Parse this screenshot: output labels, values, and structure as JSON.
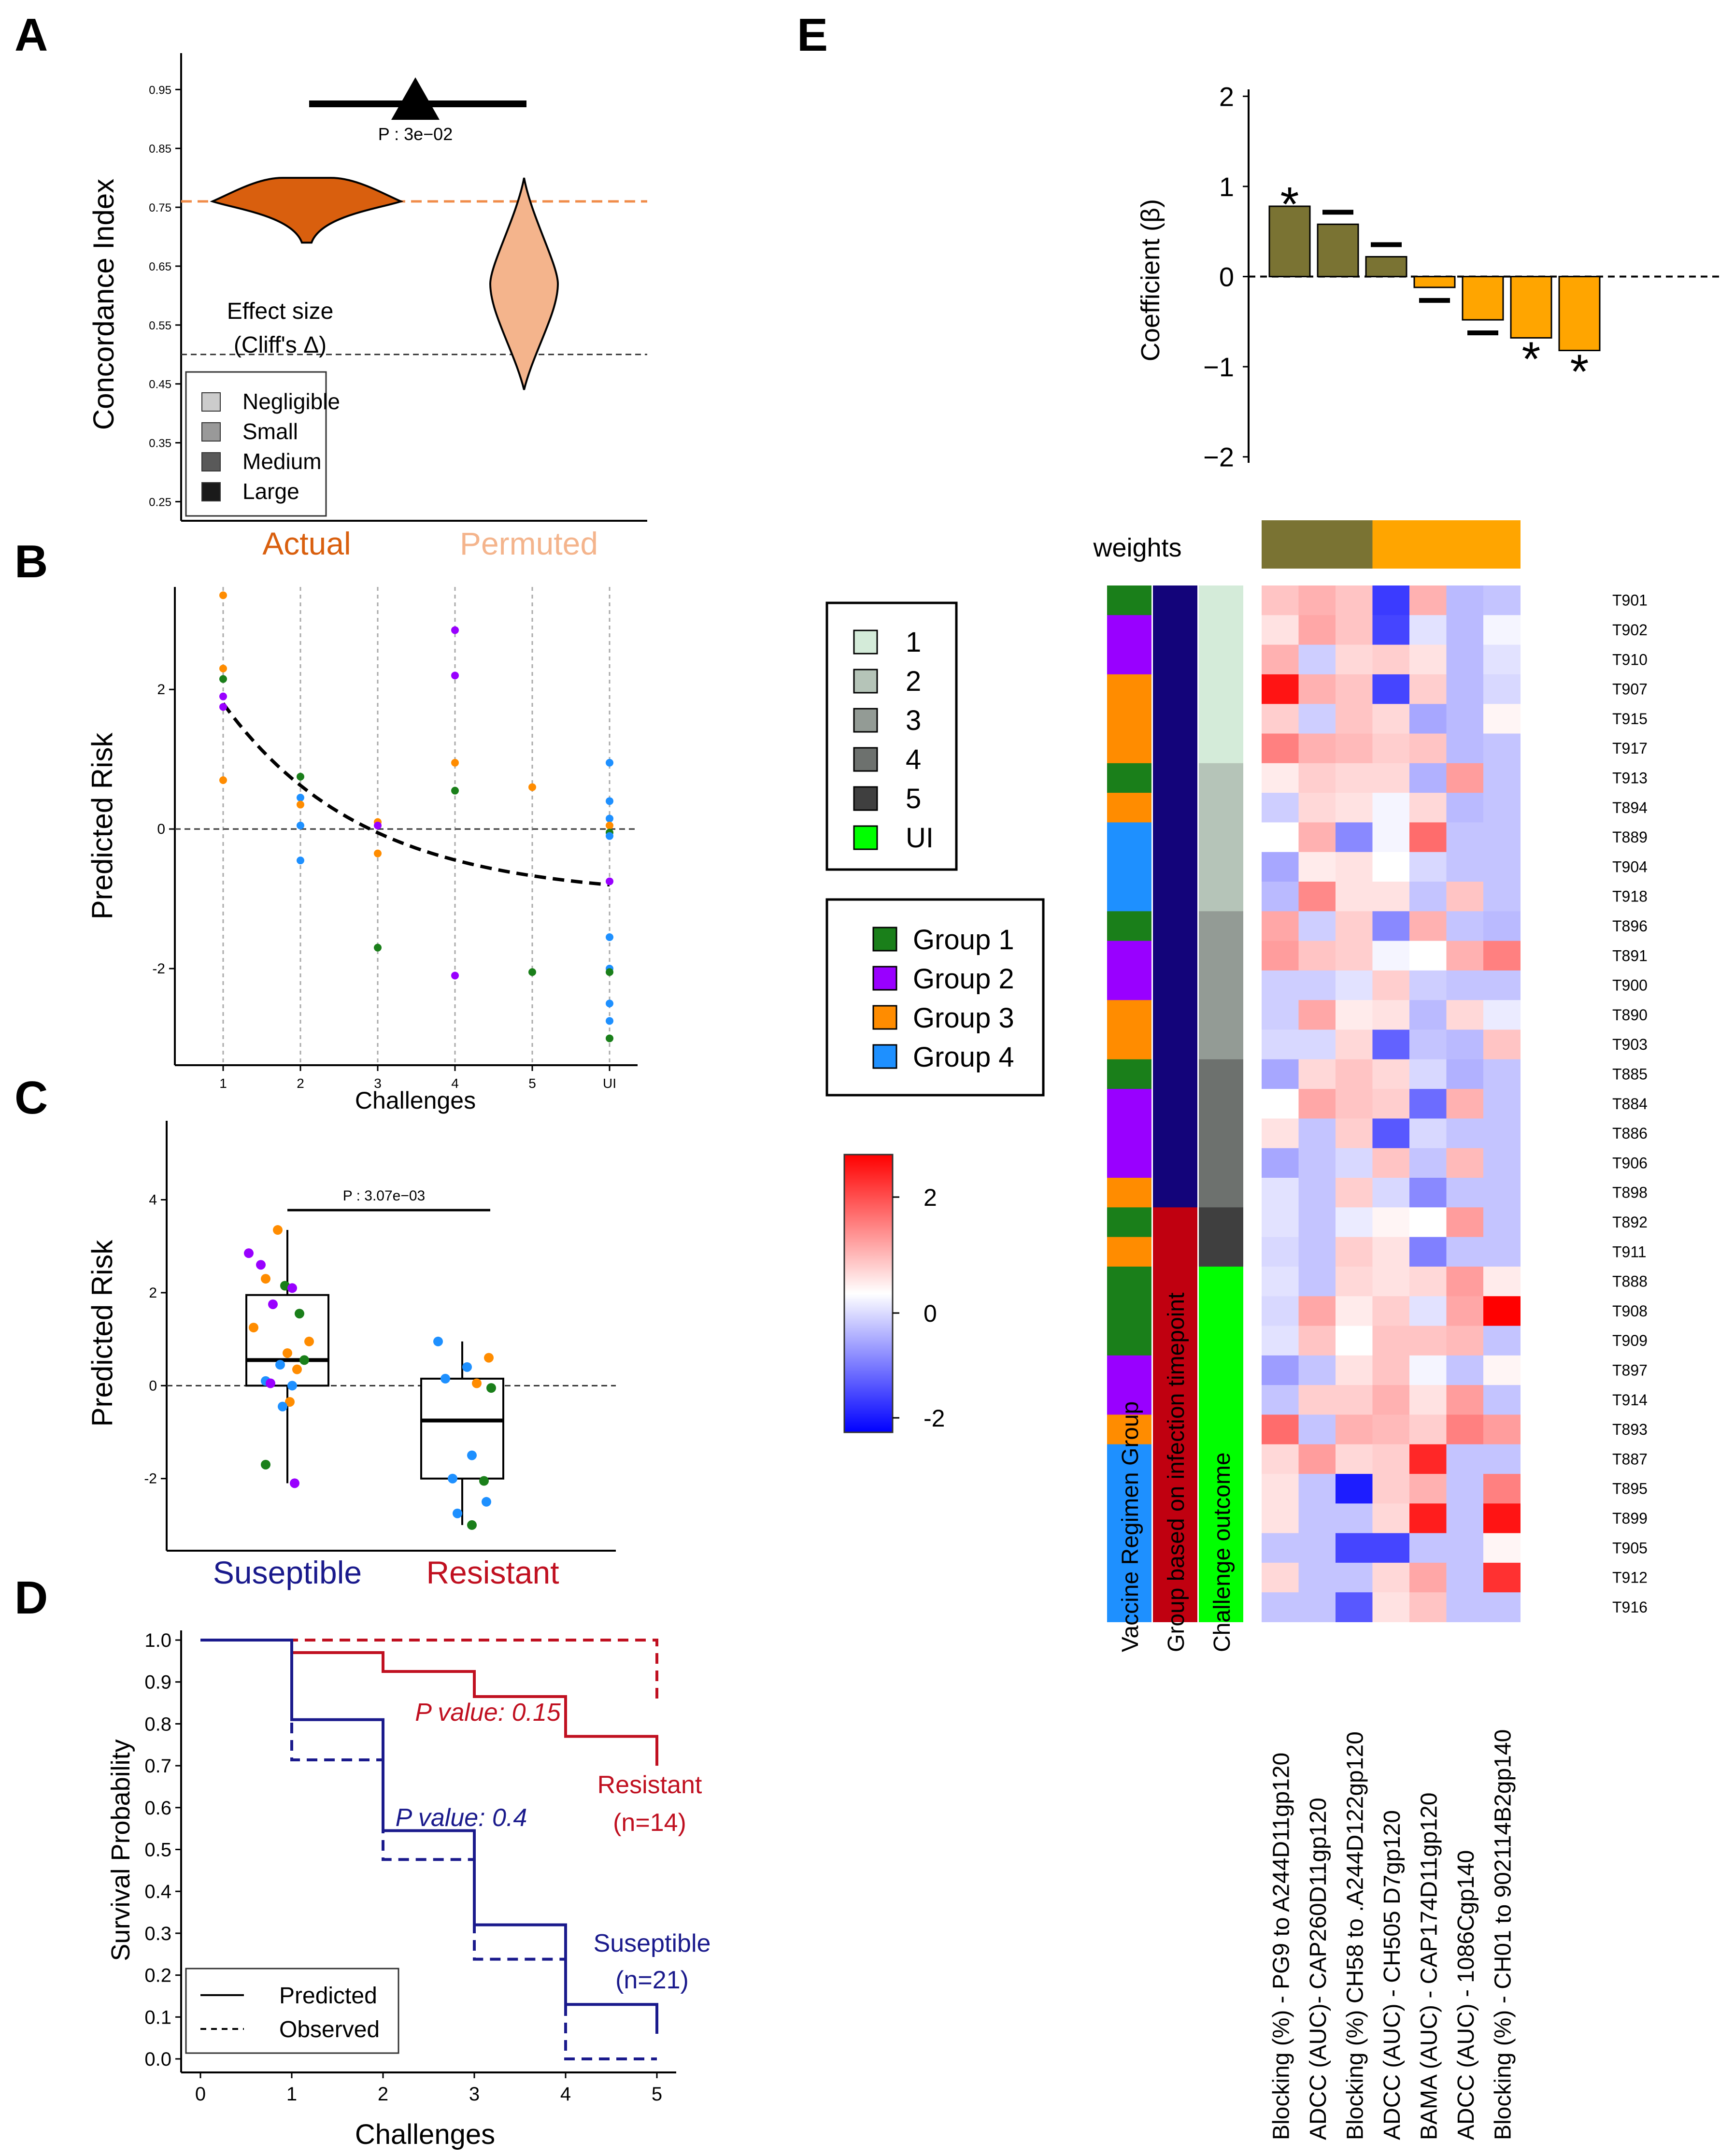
{
  "panel_letters": {
    "A": "A",
    "B": "B",
    "C": "C",
    "D": "D",
    "E": "E"
  },
  "colors": {
    "actual": "#d95f0e",
    "permuted": "#f4b48c",
    "ref_line": "#f08c4a",
    "susceptible": "#1a1a8c",
    "resistant": "#c01020",
    "group1": "#1a7f1a",
    "group2": "#9900ff",
    "group3": "#ff8c00",
    "group4": "#1e90ff",
    "olive": "#7a7333",
    "orange_bar": "#ffa500",
    "uninfected": "#00ff00",
    "navy": "#13047a",
    "crimson": "#c00010"
  },
  "chart_data": [
    {
      "panel": "A",
      "type": "violin",
      "ylabel": "Concordance Index",
      "yticks": [
        0.25,
        0.35,
        0.45,
        0.55,
        0.65,
        0.75,
        0.85,
        0.95
      ],
      "ylim": [
        0.22,
        1.02
      ],
      "categories": [
        "Actual",
        "Permuted"
      ],
      "actual": {
        "median": 0.76,
        "min": 0.69,
        "max": 0.8
      },
      "permuted": {
        "median": 0.62,
        "min": 0.44,
        "max": 0.8
      },
      "reference_line": 0.5,
      "p_label": "P :  3e−02",
      "effect_size_title": [
        "Effect size",
        "(Cliff's Δ)"
      ],
      "legend": [
        "Negligible",
        "Small",
        "Medium",
        "Large"
      ],
      "legend_colors": [
        "#cccccc",
        "#999999",
        "#595959",
        "#1a1a1a"
      ]
    },
    {
      "panel": "B",
      "type": "scatter",
      "xlabel": "Challenges",
      "ylabel": "Predicted Risk",
      "xticks": [
        "1",
        "2",
        "3",
        "4",
        "5",
        "UI"
      ],
      "yticks": [
        -2,
        0,
        2
      ],
      "ylim": [
        -3.35,
        3.4
      ],
      "fit": {
        "from": 1,
        "to": 6,
        "y_at_from": 1.8,
        "y_at_to": -0.8
      },
      "points": [
        {
          "x": 1,
          "y": 3.35,
          "g": 3
        },
        {
          "x": 1,
          "y": 2.3,
          "g": 3
        },
        {
          "x": 1,
          "y": 2.15,
          "g": 1
        },
        {
          "x": 1,
          "y": 1.9,
          "g": 2
        },
        {
          "x": 1,
          "y": 1.75,
          "g": 2
        },
        {
          "x": 1,
          "y": 0.7,
          "g": 3
        },
        {
          "x": 2,
          "y": 0.75,
          "g": 1
        },
        {
          "x": 2,
          "y": 0.45,
          "g": 4
        },
        {
          "x": 2,
          "y": 0.35,
          "g": 3
        },
        {
          "x": 2,
          "y": 0.05,
          "g": 4
        },
        {
          "x": 2,
          "y": -0.45,
          "g": 4
        },
        {
          "x": 3,
          "y": 0.1,
          "g": 3
        },
        {
          "x": 3,
          "y": 0.05,
          "g": 2
        },
        {
          "x": 3,
          "y": -0.35,
          "g": 3
        },
        {
          "x": 3,
          "y": -1.7,
          "g": 1
        },
        {
          "x": 4,
          "y": 2.85,
          "g": 2
        },
        {
          "x": 4,
          "y": 2.2,
          "g": 2
        },
        {
          "x": 4,
          "y": 0.95,
          "g": 3
        },
        {
          "x": 4,
          "y": 0.55,
          "g": 1
        },
        {
          "x": 4,
          "y": -2.1,
          "g": 2
        },
        {
          "x": 5,
          "y": 0.6,
          "g": 3
        },
        {
          "x": 5,
          "y": -2.05,
          "g": 1
        },
        {
          "x": 6,
          "y": 0.95,
          "g": 4
        },
        {
          "x": 6,
          "y": 0.4,
          "g": 4
        },
        {
          "x": 6,
          "y": 0.15,
          "g": 4
        },
        {
          "x": 6,
          "y": 0.05,
          "g": 3
        },
        {
          "x": 6,
          "y": -0.05,
          "g": 1
        },
        {
          "x": 6,
          "y": -0.1,
          "g": 4
        },
        {
          "x": 6,
          "y": -0.75,
          "g": 2
        },
        {
          "x": 6,
          "y": -1.55,
          "g": 4
        },
        {
          "x": 6,
          "y": -2.0,
          "g": 4
        },
        {
          "x": 6,
          "y": -2.05,
          "g": 1
        },
        {
          "x": 6,
          "y": -2.5,
          "g": 4
        },
        {
          "x": 6,
          "y": -2.75,
          "g": 4
        },
        {
          "x": 6,
          "y": -3.0,
          "g": 1
        }
      ]
    },
    {
      "panel": "C",
      "type": "box",
      "ylabel": "Predicted Risk",
      "categories": [
        "Suseptible",
        "Resistant"
      ],
      "yticks": [
        -2,
        0,
        2,
        4
      ],
      "ylim": [
        -3.5,
        5.7
      ],
      "p_label": "P :  3.07e−03",
      "boxes": [
        {
          "name": "Suseptible",
          "q1": 0.0,
          "median": 0.55,
          "q3": 1.95,
          "low": -2.1,
          "high": 3.35
        },
        {
          "name": "Resistant",
          "q1": -2.0,
          "median": -0.75,
          "q3": 0.15,
          "low": -3.0,
          "high": 0.95
        }
      ],
      "points": [
        {
          "b": 0,
          "y": 3.35,
          "g": 3,
          "j": -0.2
        },
        {
          "b": 0,
          "y": 2.85,
          "g": 2,
          "j": -0.8
        },
        {
          "b": 0,
          "y": 2.6,
          "g": 2,
          "j": -0.55
        },
        {
          "b": 0,
          "y": 2.3,
          "g": 3,
          "j": -0.45
        },
        {
          "b": 0,
          "y": 2.15,
          "g": 1,
          "j": -0.05
        },
        {
          "b": 0,
          "y": 2.1,
          "g": 2,
          "j": 0.1
        },
        {
          "b": 0,
          "y": 1.75,
          "g": 2,
          "j": -0.3
        },
        {
          "b": 0,
          "y": 1.55,
          "g": 1,
          "j": 0.25
        },
        {
          "b": 0,
          "y": 1.25,
          "g": 3,
          "j": -0.7
        },
        {
          "b": 0,
          "y": 0.95,
          "g": 3,
          "j": 0.45
        },
        {
          "b": 0,
          "y": 0.7,
          "g": 3,
          "j": 0.0
        },
        {
          "b": 0,
          "y": 0.55,
          "g": 1,
          "j": 0.35
        },
        {
          "b": 0,
          "y": 0.45,
          "g": 4,
          "j": -0.15
        },
        {
          "b": 0,
          "y": 0.35,
          "g": 3,
          "j": 0.2
        },
        {
          "b": 0,
          "y": 0.1,
          "g": 4,
          "j": -0.45
        },
        {
          "b": 0,
          "y": 0.05,
          "g": 2,
          "j": -0.35
        },
        {
          "b": 0,
          "y": 0.0,
          "g": 4,
          "j": 0.1
        },
        {
          "b": 0,
          "y": -0.35,
          "g": 3,
          "j": 0.05
        },
        {
          "b": 0,
          "y": -0.45,
          "g": 4,
          "j": -0.1
        },
        {
          "b": 0,
          "y": -1.7,
          "g": 1,
          "j": -0.45
        },
        {
          "b": 0,
          "y": -2.1,
          "g": 2,
          "j": 0.15
        },
        {
          "b": 1,
          "y": 0.95,
          "g": 4,
          "j": -0.5
        },
        {
          "b": 1,
          "y": 0.6,
          "g": 3,
          "j": 0.55
        },
        {
          "b": 1,
          "y": 0.4,
          "g": 4,
          "j": 0.1
        },
        {
          "b": 1,
          "y": 0.15,
          "g": 4,
          "j": -0.35
        },
        {
          "b": 1,
          "y": 0.05,
          "g": 3,
          "j": 0.3
        },
        {
          "b": 1,
          "y": -0.05,
          "g": 1,
          "j": 0.6
        },
        {
          "b": 1,
          "y": -1.5,
          "g": 4,
          "j": 0.2
        },
        {
          "b": 1,
          "y": -2.0,
          "g": 4,
          "j": -0.2
        },
        {
          "b": 1,
          "y": -2.05,
          "g": 1,
          "j": 0.45
        },
        {
          "b": 1,
          "y": -2.5,
          "g": 4,
          "j": 0.5
        },
        {
          "b": 1,
          "y": -2.75,
          "g": 4,
          "j": -0.1
        },
        {
          "b": 1,
          "y": -3.0,
          "g": 1,
          "j": 0.2
        }
      ]
    },
    {
      "panel": "D",
      "type": "line",
      "xlabel": "Challenges",
      "ylabel": "Survival Probability",
      "xticks": [
        0,
        1,
        2,
        3,
        4,
        5
      ],
      "yticks": [
        0.0,
        0.1,
        0.2,
        0.3,
        0.4,
        0.5,
        0.6,
        0.7,
        0.8,
        0.9,
        1.0
      ],
      "series": [
        {
          "name": "Resistant",
          "kind": "Predicted",
          "x": [
            0,
            1,
            2,
            3,
            4,
            5
          ],
          "y": [
            1.0,
            0.97,
            0.925,
            0.865,
            0.77,
            0.7
          ]
        },
        {
          "name": "Resistant",
          "kind": "Observed",
          "x": [
            0,
            1,
            2,
            3,
            4,
            5
          ],
          "y": [
            1.0,
            1.0,
            1.0,
            1.0,
            1.0,
            0.857
          ]
        },
        {
          "name": "Suseptible",
          "kind": "Predicted",
          "x": [
            0,
            1,
            2,
            3,
            4,
            5
          ],
          "y": [
            1.0,
            0.81,
            0.545,
            0.32,
            0.13,
            0.06
          ]
        },
        {
          "name": "Suseptible",
          "kind": "Observed",
          "x": [
            0,
            1,
            2,
            3,
            4,
            5
          ],
          "y": [
            1.0,
            0.714,
            0.476,
            0.238,
            0.0,
            0.0
          ]
        }
      ],
      "annotations": {
        "p_resistant": "P value: 0.15",
        "p_susceptible": "P value: 0.4",
        "resistant": "Resistant",
        "resistant_n": "(n=14)",
        "susceptible": "Suseptible",
        "susceptible_n": "(n=21)"
      },
      "legend": [
        "Predicted",
        "Observed"
      ]
    },
    {
      "panel": "E",
      "type": "bar",
      "ylabel": "Coefficient (β)",
      "yticks": [
        -2,
        -1,
        0,
        1,
        2
      ],
      "ylim": [
        -2.05,
        2.05
      ],
      "values": [
        0.78,
        0.58,
        0.22,
        -0.12,
        -0.48,
        -0.68,
        -0.82
      ],
      "marks": [
        "*",
        "—",
        "—",
        "—",
        "—",
        "*",
        "*"
      ]
    },
    {
      "panel": "E",
      "type": "heatmap",
      "weights_label": "weights",
      "weights": [
        1,
        1,
        1,
        -1,
        -1,
        -1,
        -1
      ],
      "columns": [
        "Blocking (%) -  PG9 to A244D11gp120",
        "ADCC (AUC)- CAP260D11gp120",
        "Blocking (%) CH58 to .A244D122gp120",
        "ADCC (AUC) - CH505 D7gp120",
        "BAMA (AUC) - CAP174D11gp120",
        "ADCC (AUC) - 1086Cgp140",
        "Blocking (%) - CH01 to  902114B2gp140"
      ],
      "annotation_columns": [
        "Vaccine Regimen Group",
        "Group based on infection timepoint",
        "Challenge outcome"
      ],
      "rows": [
        "T901",
        "T902",
        "T910",
        "T907",
        "T915",
        "T917",
        "T913",
        "T894",
        "T889",
        "T904",
        "T918",
        "T896",
        "T891",
        "T900",
        "T890",
        "T903",
        "T885",
        "T884",
        "T886",
        "T906",
        "T898",
        "T892",
        "T911",
        "T888",
        "T908",
        "T909",
        "T897",
        "T914",
        "T893",
        "T887",
        "T895",
        "T899",
        "T905",
        "T912",
        "T916"
      ],
      "vaccine_group": [
        1,
        2,
        2,
        3,
        3,
        3,
        1,
        3,
        4,
        4,
        4,
        1,
        2,
        2,
        3,
        3,
        1,
        2,
        2,
        2,
        3,
        1,
        3,
        1,
        1,
        1,
        2,
        2,
        3,
        4,
        4,
        4,
        4,
        4,
        4
      ],
      "infection_group": [
        "S",
        "S",
        "S",
        "S",
        "S",
        "S",
        "S",
        "S",
        "S",
        "S",
        "S",
        "S",
        "S",
        "S",
        "S",
        "S",
        "S",
        "S",
        "S",
        "S",
        "S",
        "R",
        "R",
        "R",
        "R",
        "R",
        "R",
        "R",
        "R",
        "R",
        "R",
        "R",
        "R",
        "R",
        "R"
      ],
      "challenge_outcome": [
        "1",
        "1",
        "1",
        "1",
        "1",
        "1",
        "2",
        "2",
        "2",
        "2",
        "2",
        "3",
        "3",
        "3",
        "3",
        "3",
        "4",
        "4",
        "4",
        "4",
        "4",
        "5",
        "5",
        "UI",
        "UI",
        "UI",
        "UI",
        "UI",
        "UI",
        "UI",
        "UI",
        "UI",
        "UI",
        "UI",
        "UI"
      ],
      "values": [
        [
          0.6,
          0.8,
          0.6,
          -2.0,
          0.8,
          -0.7,
          -0.6
        ],
        [
          0.3,
          0.9,
          0.6,
          -1.9,
          -0.3,
          -0.7,
          -0.1
        ],
        [
          0.8,
          -0.5,
          0.4,
          0.5,
          0.3,
          -0.7,
          -0.3
        ],
        [
          2.4,
          0.8,
          0.6,
          -1.9,
          0.5,
          -0.7,
          -0.4
        ],
        [
          0.5,
          -0.5,
          0.6,
          0.4,
          -0.9,
          -0.7,
          0.1
        ],
        [
          1.3,
          0.8,
          0.7,
          0.5,
          0.6,
          -0.7,
          -0.6
        ],
        [
          0.2,
          0.5,
          0.4,
          0.4,
          -0.8,
          1.0,
          -0.6
        ],
        [
          -0.5,
          0.4,
          0.3,
          -0.1,
          0.4,
          -0.7,
          -0.6
        ],
        [
          0.0,
          0.8,
          -1.2,
          -0.1,
          1.5,
          -0.6,
          -0.6
        ],
        [
          -0.9,
          0.2,
          0.3,
          0.0,
          -0.4,
          -0.6,
          -0.6
        ],
        [
          -0.7,
          1.2,
          0.3,
          0.3,
          -0.6,
          0.6,
          -0.6
        ],
        [
          0.9,
          -0.5,
          0.5,
          -1.2,
          0.8,
          -0.6,
          -0.7
        ],
        [
          1.0,
          0.6,
          0.5,
          -0.1,
          0.0,
          0.8,
          1.3
        ],
        [
          -0.5,
          -0.5,
          -0.3,
          0.5,
          -0.5,
          -0.6,
          -0.6
        ],
        [
          -0.5,
          0.9,
          0.2,
          0.3,
          -0.7,
          0.4,
          -0.2
        ],
        [
          -0.4,
          -0.4,
          0.4,
          -1.6,
          -0.6,
          -0.7,
          0.6
        ],
        [
          -0.9,
          0.4,
          0.6,
          0.4,
          -0.4,
          -0.8,
          -0.6
        ],
        [
          0.0,
          0.9,
          0.6,
          0.5,
          -1.5,
          0.8,
          -0.6
        ],
        [
          0.3,
          -0.6,
          0.5,
          -1.7,
          -0.4,
          -0.6,
          -0.6
        ],
        [
          -0.9,
          -0.6,
          -0.4,
          0.6,
          -0.6,
          0.7,
          -0.6
        ],
        [
          -0.3,
          -0.6,
          0.5,
          -0.4,
          -1.2,
          -0.6,
          -0.6
        ],
        [
          -0.3,
          -0.6,
          -0.2,
          0.1,
          0.0,
          1.0,
          -0.6
        ],
        [
          -0.4,
          -0.6,
          0.5,
          0.3,
          -1.3,
          -0.6,
          -0.6
        ],
        [
          -0.3,
          -0.6,
          0.4,
          0.3,
          0.4,
          1.0,
          0.2
        ],
        [
          -0.4,
          0.9,
          0.2,
          0.5,
          -0.3,
          0.9,
          2.6
        ],
        [
          -0.3,
          0.6,
          0.0,
          0.6,
          0.6,
          0.7,
          -0.6
        ],
        [
          -1.0,
          -0.6,
          0.3,
          0.6,
          -0.1,
          -0.6,
          0.1
        ],
        [
          -0.6,
          0.5,
          0.5,
          0.8,
          0.3,
          1.0,
          -0.6
        ],
        [
          1.5,
          -0.6,
          0.8,
          0.7,
          0.5,
          1.3,
          1.0
        ],
        [
          0.4,
          1.0,
          0.4,
          0.5,
          2.2,
          -0.6,
          -0.6
        ],
        [
          0.3,
          -0.6,
          -2.3,
          0.5,
          0.8,
          -0.6,
          1.3
        ],
        [
          0.3,
          -0.6,
          -0.6,
          0.4,
          2.3,
          -0.6,
          2.4
        ],
        [
          -0.6,
          -0.6,
          -1.9,
          -1.9,
          -0.6,
          -0.6,
          0.1
        ],
        [
          0.4,
          -0.6,
          -0.6,
          0.4,
          0.9,
          -0.6,
          2.1
        ],
        [
          -0.6,
          -0.6,
          -1.7,
          0.3,
          0.6,
          -0.6,
          -0.6
        ]
      ],
      "outcome_legend": [
        "1",
        "2",
        "3",
        "4",
        "5",
        "UI"
      ],
      "outcome_colors": [
        "#d4ebd9",
        "#b5c4b8",
        "#939b95",
        "#6d716e",
        "#3f3f3f",
        "#00ff00"
      ],
      "group_legend": [
        "Group 1",
        "Group 2",
        "Group 3",
        "Group 4"
      ],
      "scale_ticks": [
        "2",
        "0",
        "-2"
      ]
    }
  ]
}
